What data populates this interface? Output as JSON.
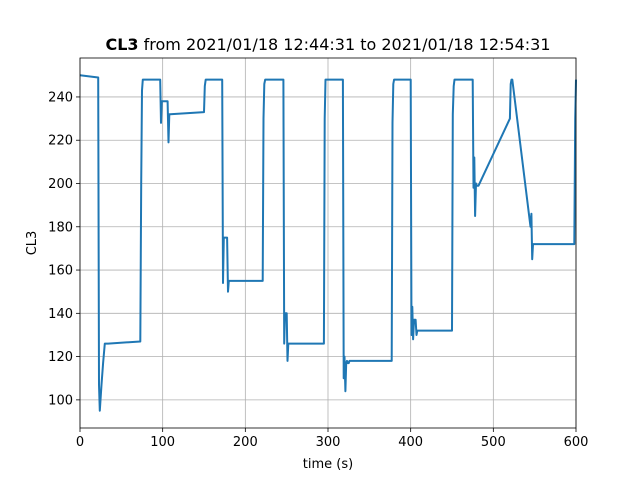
{
  "chart_data": {
    "type": "line",
    "title": {
      "bold": "CL3",
      "rest": " from 2021/01/18 12:44:31 to 2021/01/18 12:54:31"
    },
    "xlabel": "time (s)",
    "ylabel": "CL3",
    "xlim": [
      0,
      600
    ],
    "ylim": [
      87,
      258
    ],
    "xticks": [
      0,
      100,
      200,
      300,
      400,
      500,
      600
    ],
    "yticks": [
      100,
      120,
      140,
      160,
      180,
      200,
      220,
      240
    ],
    "grid": true,
    "color": "#1f77b4",
    "series": [
      {
        "x": [
          0,
          22,
          23,
          24,
          26,
          28,
          30,
          34,
          73,
          74,
          75,
          76,
          78,
          79,
          97,
          98,
          99,
          100,
          106,
          107,
          108,
          109,
          150,
          151,
          152,
          153,
          172,
          173,
          174,
          178,
          179,
          180,
          181,
          182,
          221,
          222,
          223,
          224,
          246,
          247,
          248,
          250,
          251,
          252,
          253,
          295,
          296,
          297,
          318,
          319,
          320,
          321,
          322,
          323,
          324,
          325,
          326,
          327,
          328,
          377,
          378,
          379,
          380,
          381,
          400,
          401,
          402,
          403,
          404,
          406,
          407,
          408,
          409,
          450,
          451,
          452,
          453,
          475,
          476,
          477,
          478,
          479,
          480,
          481,
          482,
          520,
          521,
          522,
          523,
          545,
          546,
          547,
          548,
          549,
          550,
          551,
          552,
          598,
          599,
          600
        ],
        "y": [
          250,
          249,
          107,
          95,
          107,
          117,
          126,
          126,
          127,
          200,
          243,
          248,
          248,
          248,
          248,
          228,
          238,
          238,
          238,
          219,
          232,
          232,
          233,
          245,
          248,
          248,
          248,
          154,
          175,
          175,
          150,
          155,
          155,
          155,
          155,
          230,
          246,
          248,
          248,
          126,
          140,
          140,
          118,
          126,
          126,
          126,
          230,
          248,
          248,
          110,
          120,
          104,
          117,
          118,
          117,
          117,
          118,
          118,
          118,
          118,
          228,
          246,
          248,
          248,
          248,
          130,
          143,
          128,
          137,
          137,
          130,
          132,
          132,
          132,
          232,
          245,
          248,
          248,
          198,
          212,
          185,
          200,
          199,
          199,
          199,
          230,
          246,
          248,
          248,
          180,
          186,
          165,
          172,
          172,
          172,
          172,
          172,
          172,
          230,
          248
        ]
      }
    ]
  }
}
